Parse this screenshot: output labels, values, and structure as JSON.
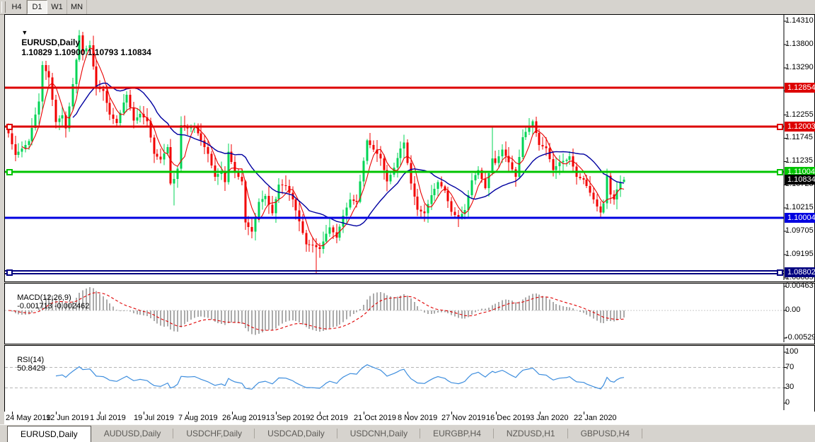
{
  "toolbar": {
    "buttons": [
      {
        "label": "H4",
        "active": false
      },
      {
        "label": "D1",
        "active": true
      },
      {
        "label": "W1",
        "active": false
      },
      {
        "label": "MN",
        "active": false
      }
    ]
  },
  "chart": {
    "symbol": "EURUSD,Daily",
    "ohlc_text": "1.10829 1.10900 1.10793 1.10834",
    "current_price": "1.10834",
    "current_price_value": 1.10834
  },
  "macd": {
    "label": "MACD(12,26,9)",
    "values": "-0.001713 -0.002462",
    "axis": [
      {
        "text": "0.00463",
        "value": 0.00463
      },
      {
        "text": "0.00",
        "value": 0.0
      },
      {
        "text": "-0.005299",
        "value": -0.005299
      }
    ]
  },
  "rsi": {
    "label": "RSI(14)",
    "value": "50.8429",
    "axis": [
      {
        "text": "100",
        "value": 100
      },
      {
        "text": "70",
        "value": 70
      },
      {
        "text": "30",
        "value": 30
      },
      {
        "text": "0",
        "value": 0
      }
    ],
    "levels": [
      70,
      30
    ]
  },
  "tabs": [
    {
      "label": "EURUSD,Daily",
      "active": true
    },
    {
      "label": "AUDUSD,Daily",
      "active": false
    },
    {
      "label": "USDCHF,Daily",
      "active": false
    },
    {
      "label": "USDCAD,Daily",
      "active": false
    },
    {
      "label": "USDCNH,Daily",
      "active": false
    },
    {
      "label": "EURGBP,H4",
      "active": false
    },
    {
      "label": "NZDUSD,H1",
      "active": false
    },
    {
      "label": "GBPUSD,H4",
      "active": false
    }
  ],
  "chart_data": {
    "type": "candlestick",
    "symbol": "EURUSD",
    "timeframe": "Daily",
    "y_ticks": [
      "1.14310",
      "1.13800",
      "1.13290",
      "1.12780",
      "1.12255",
      "1.11745",
      "1.11235",
      "1.10725",
      "1.10215",
      "1.09705",
      "1.09195",
      "1.08685"
    ],
    "y_tick_values": [
      1.1431,
      1.138,
      1.1329,
      1.1278,
      1.12255,
      1.11745,
      1.11235,
      1.10725,
      1.10215,
      1.09705,
      1.09195,
      1.08685
    ],
    "x_ticks": [
      "24 May 2019",
      "12 Jun 2019",
      "1 Jul 2019",
      "19 Jul 2019",
      "7 Aug 2019",
      "26 Aug 2019",
      "13 Sep 2019",
      "2 Oct 2019",
      "21 Oct 2019",
      "8 Nov 2019",
      "27 Nov 2019",
      "16 Dec 2019",
      "3 Jan 2020",
      "22 Jan 2020"
    ],
    "hlines": [
      {
        "value": 1.12854,
        "label": "1.12854",
        "color": "#dd0000",
        "width": 3,
        "style": "solid",
        "handles": false
      },
      {
        "value": 1.12003,
        "label": "1.12003",
        "color": "#dd0000",
        "width": 3,
        "style": "solid",
        "handles": true
      },
      {
        "value": 1.11004,
        "label": "1.11004",
        "color": "#00c400",
        "width": 3,
        "style": "solid",
        "handles": true
      },
      {
        "value": 1.10004,
        "label": "1.10004",
        "color": "#0000e0",
        "width": 3,
        "style": "solid",
        "handles": false
      },
      {
        "value": 1.08802,
        "label": "1.08802",
        "color": "#000080",
        "width": 2,
        "style": "double",
        "handles": true
      }
    ],
    "moving_averages": [
      {
        "period": 5,
        "color": "#e80000"
      },
      {
        "period": 20,
        "color": "#0000a0"
      }
    ],
    "candle_count": 183,
    "close_anchors": [
      [
        0,
        1.1185
      ],
      [
        2,
        1.1138
      ],
      [
        4,
        1.1152
      ],
      [
        6,
        1.1168
      ],
      [
        9,
        1.1255
      ],
      [
        10,
        1.1335
      ],
      [
        12,
        1.1308
      ],
      [
        14,
        1.121
      ],
      [
        16,
        1.1225
      ],
      [
        17,
        1.1196
      ],
      [
        19,
        1.1293
      ],
      [
        21,
        1.14
      ],
      [
        22,
        1.1365
      ],
      [
        24,
        1.1378
      ],
      [
        26,
        1.1286
      ],
      [
        28,
        1.1278
      ],
      [
        30,
        1.1226
      ],
      [
        32,
        1.1208
      ],
      [
        34,
        1.1253
      ],
      [
        35,
        1.127
      ],
      [
        37,
        1.1213
      ],
      [
        39,
        1.1228
      ],
      [
        41,
        1.1212
      ],
      [
        43,
        1.114
      ],
      [
        45,
        1.1128
      ],
      [
        47,
        1.1155
      ],
      [
        48,
        1.1075
      ],
      [
        49,
        1.1085
      ],
      [
        50,
        1.1108
      ],
      [
        51,
        1.1203
      ],
      [
        53,
        1.1196
      ],
      [
        55,
        1.12
      ],
      [
        57,
        1.117
      ],
      [
        59,
        1.114
      ],
      [
        61,
        1.109
      ],
      [
        63,
        1.1102
      ],
      [
        64,
        1.1078
      ],
      [
        65,
        1.1145
      ],
      [
        67,
        1.11
      ],
      [
        69,
        1.108
      ],
      [
        70,
        1.099
      ],
      [
        72,
        1.097
      ],
      [
        74,
        1.1035
      ],
      [
        76,
        1.1048
      ],
      [
        78,
        1.101
      ],
      [
        80,
        1.1073
      ],
      [
        82,
        1.107
      ],
      [
        84,
        1.104
      ],
      [
        86,
        1.0992
      ],
      [
        88,
        1.0942
      ],
      [
        90,
        1.094
      ],
      [
        92,
        1.0932
      ],
      [
        94,
        1.0965
      ],
      [
        95,
        1.0979
      ],
      [
        97,
        1.0957
      ],
      [
        99,
        1.1005
      ],
      [
        101,
        1.104
      ],
      [
        103,
        1.1035
      ],
      [
        105,
        1.1125
      ],
      [
        106,
        1.117
      ],
      [
        108,
        1.115
      ],
      [
        110,
        1.113
      ],
      [
        112,
        1.108
      ],
      [
        114,
        1.111
      ],
      [
        116,
        1.1152
      ],
      [
        117,
        1.1165
      ],
      [
        119,
        1.1075
      ],
      [
        121,
        1.1018
      ],
      [
        123,
        1.101
      ],
      [
        125,
        1.105
      ],
      [
        127,
        1.1078
      ],
      [
        129,
        1.106
      ],
      [
        131,
        1.1013
      ],
      [
        133,
        1.1
      ],
      [
        135,
        1.1017
      ],
      [
        137,
        1.1082
      ],
      [
        139,
        1.1105
      ],
      [
        141,
        1.1065
      ],
      [
        143,
        1.113
      ],
      [
        144,
        1.112
      ],
      [
        146,
        1.115
      ],
      [
        148,
        1.1122
      ],
      [
        150,
        1.109
      ],
      [
        152,
        1.1177
      ],
      [
        154,
        1.12
      ],
      [
        155,
        1.1212
      ],
      [
        157,
        1.116
      ],
      [
        159,
        1.1153
      ],
      [
        161,
        1.1105
      ],
      [
        163,
        1.1122
      ],
      [
        165,
        1.1127
      ],
      [
        166,
        1.1135
      ],
      [
        168,
        1.109
      ],
      [
        170,
        1.1084
      ],
      [
        172,
        1.1055
      ],
      [
        174,
        1.1025
      ],
      [
        175,
        1.1012
      ],
      [
        176,
        1.1032
      ],
      [
        177,
        1.1092
      ],
      [
        178,
        1.1051
      ],
      [
        179,
        1.104
      ],
      [
        180,
        1.1062
      ],
      [
        181,
        1.1078
      ],
      [
        182,
        1.10834
      ]
    ],
    "wick_overrides": [
      [
        21,
        "high",
        1.1412
      ],
      [
        49,
        "low",
        1.1027
      ],
      [
        91,
        "low",
        1.0879
      ],
      [
        143,
        "high",
        1.12
      ],
      [
        182,
        "high",
        1.109
      ],
      [
        182,
        "low",
        1.10793
      ]
    ],
    "macd_series": "computed EMA12-EMA26 with EMA9 signal from close_anchors",
    "rsi_series": "computed Wilder RSI(14) from close_anchors"
  }
}
